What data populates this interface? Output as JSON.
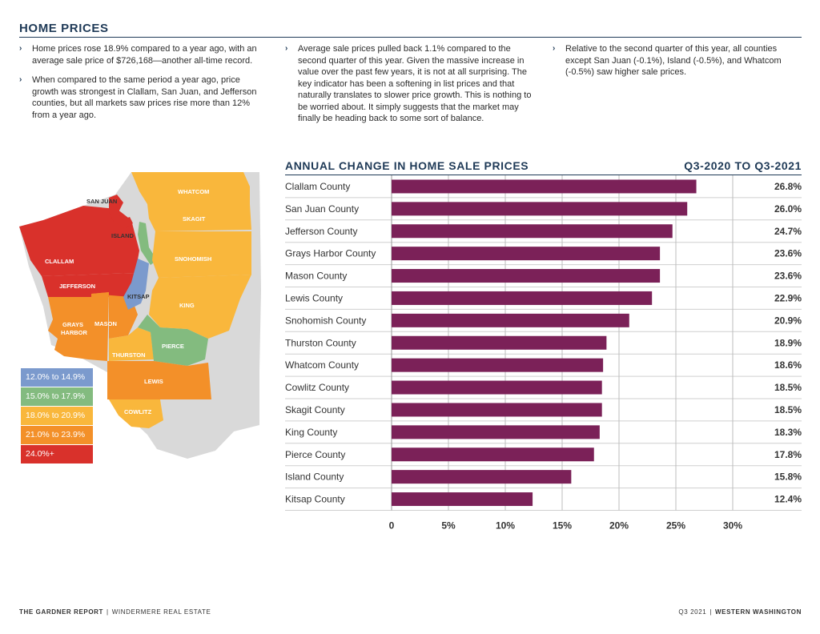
{
  "section_title": "HOME PRICES",
  "bullet_marker": "›",
  "bullets_col1": [
    "Home prices rose 18.9% compared to a year ago, with an average sale price of $726,168—another all-time record.",
    "When compared to the same period a year ago, price growth was strongest in Clallam, San Juan, and Jefferson counties, but all markets saw prices rise more than 12% from a year ago."
  ],
  "bullets_col2": [
    "Average sale prices pulled back 1.1% compared to the second quarter of this year. Given the massive increase in value over the past few years, it is not at all surprising. The key indicator has been a softening in list prices and that naturally translates to slower price growth. This is nothing to be worried about. It simply suggests that the market may finally be heading back to some sort of balance."
  ],
  "bullets_col3": [
    "Relative to the second quarter of this year, all counties except San Juan (-0.1%), Island (-0.5%), and Whatcom (-0.5%) saw higher sale prices."
  ],
  "chart_data": {
    "type": "bar",
    "orientation": "horizontal",
    "title": "ANNUAL CHANGE IN HOME SALE PRICES",
    "subtitle": "Q3-2020 TO Q3-2021",
    "categories": [
      "Clallam County",
      "San Juan County",
      "Jefferson County",
      "Grays Harbor County",
      "Mason County",
      "Lewis County",
      "Snohomish County",
      "Thurston County",
      "Whatcom County",
      "Cowlitz County",
      "Skagit County",
      "King County",
      "Pierce County",
      "Island County",
      "Kitsap County"
    ],
    "values": [
      26.8,
      26.0,
      24.7,
      23.6,
      23.6,
      22.9,
      20.9,
      18.9,
      18.6,
      18.5,
      18.5,
      18.3,
      17.8,
      15.8,
      12.4
    ],
    "value_labels": [
      "26.8%",
      "26.0%",
      "24.7%",
      "23.6%",
      "23.6%",
      "22.9%",
      "20.9%",
      "18.9%",
      "18.6%",
      "18.5%",
      "18.5%",
      "18.3%",
      "17.8%",
      "15.8%",
      "12.4%"
    ],
    "xlim": [
      0,
      30
    ],
    "xticks": [
      0,
      5,
      10,
      15,
      20,
      25,
      30
    ],
    "xtick_labels": [
      "0",
      "5%",
      "10%",
      "15%",
      "20%",
      "25%",
      "30%"
    ],
    "grid": true,
    "bar_color": "#7b2158"
  },
  "map": {
    "labels": {
      "san_juan": "SAN JUAN",
      "whatcom": "WHATCOM",
      "skagit": "SKAGIT",
      "island": "ISLAND",
      "snohomish": "SNOHOMISH",
      "clallam": "CLALLAM",
      "jefferson": "JEFFERSON",
      "kitsap": "KITSAP",
      "king": "KING",
      "grays_harbor_1": "GRAYS",
      "grays_harbor_2": "HARBOR",
      "mason": "MASON",
      "pierce": "PIERCE",
      "thurston": "THURSTON",
      "lewis": "LEWIS",
      "cowlitz": "COWLITZ"
    },
    "colors": {
      "band_12_15": "#7b9acd",
      "band_15_18": "#83bb7f",
      "band_18_21": "#f9b73c",
      "band_21_24": "#f39029",
      "band_24_plus": "#d9312b",
      "background": "#d9d9d9"
    }
  },
  "legend": [
    {
      "label": "12.0% to 14.9%",
      "color": "#7b9acd"
    },
    {
      "label": "15.0% to 17.9%",
      "color": "#83bb7f"
    },
    {
      "label": "18.0% to 20.9%",
      "color": "#f9b73c"
    },
    {
      "label": "21.0% to 23.9%",
      "color": "#f39029"
    },
    {
      "label": "24.0%+",
      "color": "#d9312b"
    }
  ],
  "footer": {
    "left_bold": "THE GARDNER REPORT",
    "left_separator": "|",
    "left_rest": "WINDERMERE REAL ESTATE",
    "right_plain": "Q3 2021",
    "right_separator": "|",
    "right_bold": "WESTERN WASHINGTON"
  }
}
